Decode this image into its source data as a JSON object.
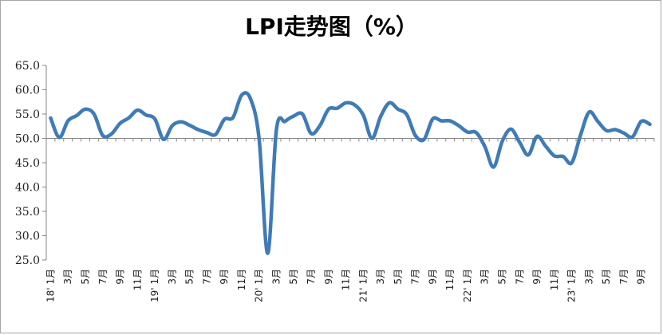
{
  "title": "LPI走势图（%）",
  "chart_data": {
    "type": "line",
    "title": "LPI走势图（%）",
    "ylim": [
      25,
      65
    ],
    "y_ticks": [
      "25.0",
      "30.0",
      "35.0",
      "40.0",
      "45.0",
      "50.0",
      "55.0",
      "60.0",
      "65.0"
    ],
    "grid": false,
    "baseline": 50,
    "line_color": "#3f7bb6",
    "x_labels": [
      "18' 1月",
      "3月",
      "5月",
      "7月",
      "9月",
      "11月",
      "19' 1月",
      "3月",
      "5月",
      "7月",
      "9月",
      "11月",
      "20' 1月",
      "3月",
      "5月",
      "7月",
      "9月",
      "11月",
      "21' 1月",
      "3月",
      "5月",
      "7月",
      "9月",
      "11月",
      "22' 1月",
      "3月",
      "5月",
      "7月",
      "9月",
      "11月",
      "23' 1月",
      "3月",
      "5月",
      "7月",
      "9月"
    ],
    "series": [
      {
        "values": [
          54.2,
          50.2,
          53.6,
          54.7,
          56.0,
          55.0,
          50.6,
          50.9,
          53.1,
          54.2,
          55.8,
          54.8,
          54.0,
          49.8,
          52.6,
          53.4,
          52.7,
          51.8,
          51.2,
          50.8,
          53.9,
          54.3,
          58.9,
          58.2,
          50.0,
          26.4,
          51.8,
          53.5,
          54.6,
          55.0,
          51.0,
          52.6,
          56.0,
          56.2,
          57.3,
          56.9,
          54.8,
          50.0,
          54.5,
          57.3,
          56.0,
          54.9,
          50.6,
          49.8,
          54.0,
          53.6,
          53.6,
          52.6,
          51.3,
          51.2,
          48.3,
          44.1,
          49.4,
          51.9,
          49.2,
          46.6,
          50.4,
          48.4,
          46.4,
          46.3,
          45.0,
          50.6,
          55.4,
          53.5,
          51.6,
          51.8,
          51.1,
          50.3,
          53.5,
          52.9
        ],
        "end_month": "2023-10"
      }
    ]
  }
}
